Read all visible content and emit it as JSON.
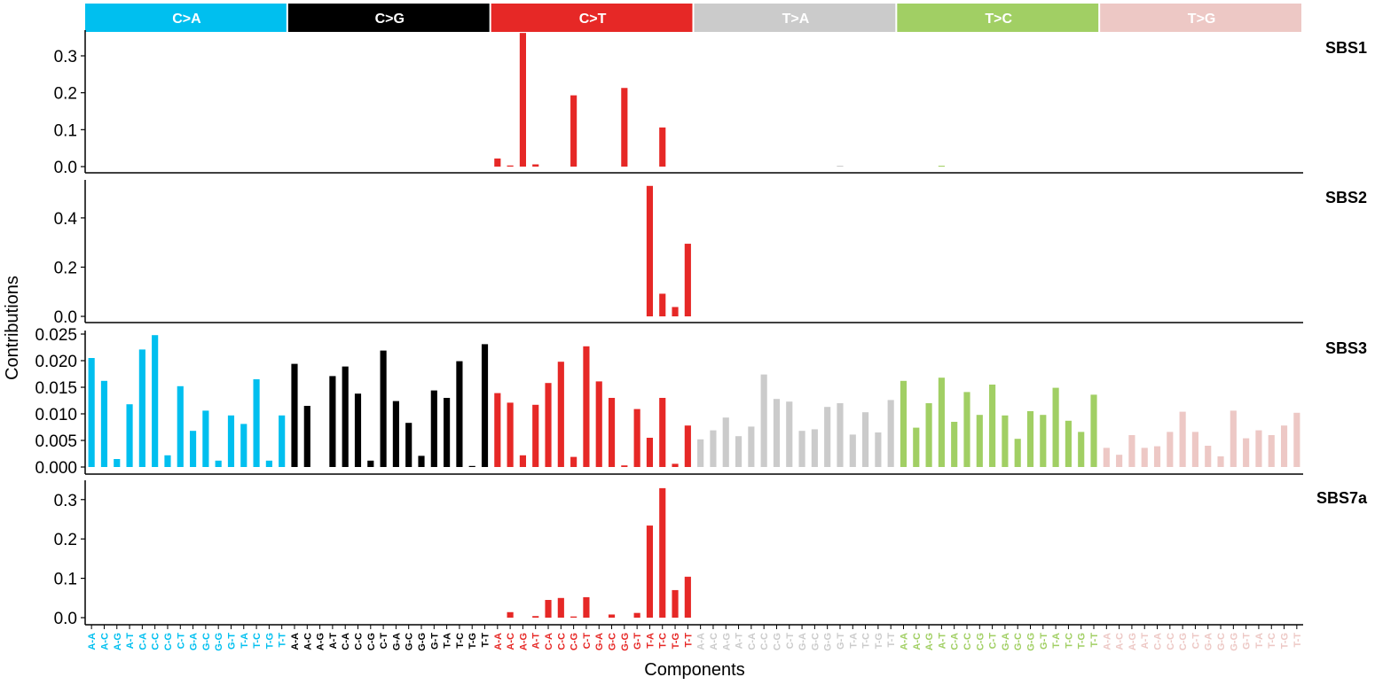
{
  "chart_data": {
    "type": "bar",
    "xlabel": "Components",
    "ylabel": "Contributions",
    "groups": [
      {
        "label": "C>A",
        "color": "#00BFEF"
      },
      {
        "label": "C>G",
        "color": "#000000"
      },
      {
        "label": "C>T",
        "color": "#E62826"
      },
      {
        "label": "T>A",
        "color": "#CBCBCB"
      },
      {
        "label": "T>C",
        "color": "#A1CF64"
      },
      {
        "label": "T>G",
        "color": "#EDC8C5"
      }
    ],
    "group_label_color": "#ffffff",
    "categories": [
      "A-A",
      "A-C",
      "A-G",
      "A-T",
      "C-A",
      "C-C",
      "C-G",
      "C-T",
      "G-A",
      "G-C",
      "G-G",
      "G-T",
      "T-A",
      "T-C",
      "T-G",
      "T-T",
      "A-A",
      "A-C",
      "A-G",
      "A-T",
      "C-A",
      "C-C",
      "C-G",
      "C-T",
      "G-A",
      "G-C",
      "G-G",
      "G-T",
      "T-A",
      "T-C",
      "T-G",
      "T-T",
      "A-A",
      "A-C",
      "A-G",
      "A-T",
      "C-A",
      "C-C",
      "C-G",
      "C-T",
      "G-A",
      "G-C",
      "G-G",
      "G-T",
      "T-A",
      "T-C",
      "T-G",
      "T-T",
      "A-A",
      "A-C",
      "A-G",
      "A-T",
      "C-A",
      "C-C",
      "C-G",
      "C-T",
      "G-A",
      "G-C",
      "G-G",
      "G-T",
      "T-A",
      "T-C",
      "T-G",
      "T-T",
      "A-A",
      "A-C",
      "A-G",
      "A-T",
      "C-A",
      "C-C",
      "C-G",
      "C-T",
      "G-A",
      "G-C",
      "G-G",
      "G-T",
      "T-A",
      "T-C",
      "T-G",
      "T-T",
      "A-A",
      "A-C",
      "A-G",
      "A-T",
      "C-A",
      "C-C",
      "C-G",
      "C-T",
      "G-A",
      "G-C",
      "G-G",
      "G-T",
      "T-A",
      "T-C",
      "T-G",
      "T-T"
    ],
    "series": [
      {
        "name": "SBS1",
        "ylim": [
          0,
          0.36
        ],
        "yticks": [
          0.0,
          0.1,
          0.2,
          0.3
        ],
        "tick_labels": [
          "0.0",
          "0.1",
          "0.2",
          "0.3"
        ],
        "values": [
          0,
          0,
          0,
          0,
          0,
          0,
          0,
          0,
          0,
          0,
          0,
          0,
          0,
          0,
          0,
          0,
          0,
          0,
          0,
          0,
          0,
          0,
          0,
          0,
          0,
          0,
          0,
          0,
          0,
          0,
          0,
          0,
          0.022,
          0.003,
          0.362,
          0.006,
          0,
          0,
          0.193,
          0,
          0,
          0,
          0.213,
          0,
          0,
          0.106,
          0,
          0,
          0,
          0,
          0,
          0,
          0,
          0,
          0,
          0,
          0,
          0,
          0,
          0.002,
          0,
          0,
          0,
          0,
          0,
          0,
          0,
          0.002,
          0,
          0,
          0,
          0,
          0,
          0,
          0,
          0,
          0,
          0,
          0,
          0,
          0,
          0,
          0,
          0,
          0,
          0,
          0,
          0,
          0,
          0,
          0,
          0,
          0,
          0,
          0,
          0
        ]
      },
      {
        "name": "SBS2",
        "ylim": [
          0,
          0.54
        ],
        "yticks": [
          0.0,
          0.2,
          0.4
        ],
        "tick_labels": [
          "0.0",
          "0.2",
          "0.4"
        ],
        "values": [
          0,
          0,
          0,
          0,
          0,
          0,
          0,
          0,
          0,
          0,
          0,
          0,
          0,
          0,
          0,
          0,
          0,
          0,
          0,
          0,
          0,
          0,
          0,
          0,
          0,
          0,
          0,
          0,
          0,
          0,
          0,
          0,
          0,
          0,
          0,
          0,
          0,
          0,
          0,
          0,
          0,
          0,
          0,
          0,
          0.53,
          0.092,
          0.038,
          0.295,
          0,
          0,
          0,
          0,
          0,
          0,
          0,
          0,
          0,
          0,
          0,
          0,
          0,
          0,
          0,
          0,
          0,
          0,
          0,
          0,
          0,
          0,
          0,
          0,
          0,
          0,
          0,
          0,
          0,
          0,
          0,
          0,
          0,
          0,
          0,
          0,
          0,
          0,
          0,
          0,
          0,
          0,
          0,
          0,
          0,
          0,
          0,
          0
        ]
      },
      {
        "name": "SBS3",
        "ylim": [
          0,
          0.025
        ],
        "yticks": [
          0.0,
          0.005,
          0.01,
          0.015,
          0.02,
          0.025
        ],
        "tick_labels": [
          "0.000",
          "0.005",
          "0.010",
          "0.015",
          "0.020",
          "0.025"
        ],
        "values": [
          0.0205,
          0.0162,
          0.0015,
          0.0118,
          0.0221,
          0.0248,
          0.0022,
          0.0152,
          0.0068,
          0.0106,
          0.0012,
          0.0097,
          0.0081,
          0.0165,
          0.0012,
          0.0097,
          0.0194,
          0.0115,
          0,
          0.0171,
          0.0189,
          0.0138,
          0.0012,
          0.0219,
          0.0124,
          0.0083,
          0.0021,
          0.0144,
          0.013,
          0.0199,
          0.0002,
          0.0231,
          0.0139,
          0.0121,
          0.0022,
          0.0117,
          0.0158,
          0.0198,
          0.0019,
          0.0227,
          0.0161,
          0.013,
          0.0003,
          0.0109,
          0.0055,
          0.013,
          0.0006,
          0.0078,
          0.0052,
          0.0069,
          0.0093,
          0.0058,
          0.0076,
          0.0174,
          0.0128,
          0.0123,
          0.0068,
          0.0071,
          0.0113,
          0.012,
          0.0061,
          0.0103,
          0.0065,
          0.0126,
          0.0162,
          0.0074,
          0.012,
          0.0168,
          0.0085,
          0.0141,
          0.0098,
          0.0155,
          0.0097,
          0.0053,
          0.0105,
          0.0098,
          0.0149,
          0.0087,
          0.0066,
          0.0136,
          0.0036,
          0.0023,
          0.006,
          0.0036,
          0.0039,
          0.0066,
          0.0104,
          0.0066,
          0.004,
          0.002,
          0.0106,
          0.0054,
          0.0069,
          0.006,
          0.0078,
          0.0102
        ]
      },
      {
        "name": "SBS7a",
        "ylim": [
          0,
          0.34
        ],
        "yticks": [
          0.0,
          0.1,
          0.2,
          0.3
        ],
        "tick_labels": [
          "0.0",
          "0.1",
          "0.2",
          "0.3"
        ],
        "values": [
          0,
          0,
          0,
          0,
          0,
          0,
          0,
          0,
          0,
          0,
          0,
          0,
          0,
          0,
          0,
          0,
          0,
          0,
          0,
          0,
          0,
          0,
          0,
          0,
          0,
          0,
          0,
          0,
          0,
          0,
          0,
          0,
          0,
          0.014,
          0,
          0.004,
          0.045,
          0.05,
          0.003,
          0.052,
          0,
          0.008,
          0,
          0.012,
          0.234,
          0.329,
          0.07,
          0.104,
          0,
          0,
          0,
          0,
          0,
          0,
          0,
          0,
          0,
          0,
          0,
          0,
          0,
          0,
          0,
          0,
          0,
          0,
          0,
          0,
          0,
          0,
          0,
          0,
          0,
          0,
          0,
          0,
          0,
          0,
          0,
          0,
          0,
          0,
          0,
          0,
          0,
          0,
          0,
          0,
          0,
          0,
          0,
          0,
          0,
          0,
          0,
          0
        ]
      }
    ]
  }
}
